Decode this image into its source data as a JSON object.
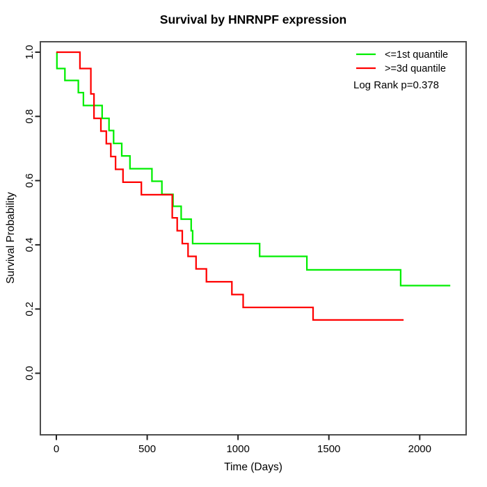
{
  "title": "Survival by HNRNPF expression",
  "chart_data": {
    "type": "line",
    "subtype": "kaplan-meier-step",
    "title": "Survival by HNRNPF expression",
    "xlabel": "Time (Days)",
    "ylabel": "Survival Probability",
    "xlim": [
      0,
      2250
    ],
    "ylim": [
      0.0,
      1.0
    ],
    "xtick_labels": [
      "0",
      "500",
      "1000",
      "1500",
      "2000"
    ],
    "ytick_labels": [
      "0.0",
      "0.2",
      "0.4",
      "0.6",
      "0.8",
      "1.0"
    ],
    "grid": false,
    "legend_position": "top-right",
    "annotation": "Log Rank p=0.378",
    "series": [
      {
        "name": "<=1st quantile",
        "color": "#00ee00",
        "start_survival": 1.0,
        "steps": [
          [
            3,
            0.949
          ],
          [
            47,
            0.912
          ],
          [
            121,
            0.874
          ],
          [
            149,
            0.834
          ],
          [
            252,
            0.794
          ],
          [
            290,
            0.756
          ],
          [
            315,
            0.716
          ],
          [
            360,
            0.677
          ],
          [
            405,
            0.637
          ],
          [
            526,
            0.598
          ],
          [
            581,
            0.557
          ],
          [
            642,
            0.52
          ],
          [
            687,
            0.48
          ],
          [
            742,
            0.444
          ],
          [
            750,
            0.404
          ],
          [
            1119,
            0.364
          ],
          [
            1379,
            0.322
          ],
          [
            1895,
            0.273
          ]
        ],
        "end_day": 2168,
        "final_survival": 0.273
      },
      {
        "name": ">=3d quantile",
        "color": "#ff0000",
        "start_survival": 1.0,
        "steps": [
          [
            130,
            0.949
          ],
          [
            190,
            0.87
          ],
          [
            207,
            0.794
          ],
          [
            245,
            0.754
          ],
          [
            275,
            0.715
          ],
          [
            300,
            0.675
          ],
          [
            326,
            0.635
          ],
          [
            367,
            0.595
          ],
          [
            468,
            0.556
          ],
          [
            638,
            0.484
          ],
          [
            665,
            0.444
          ],
          [
            693,
            0.404
          ],
          [
            725,
            0.364
          ],
          [
            769,
            0.325
          ],
          [
            826,
            0.285
          ],
          [
            966,
            0.245
          ],
          [
            1028,
            0.205
          ],
          [
            1413,
            0.166
          ]
        ],
        "end_day": 1911,
        "final_survival": 0.166
      }
    ]
  }
}
